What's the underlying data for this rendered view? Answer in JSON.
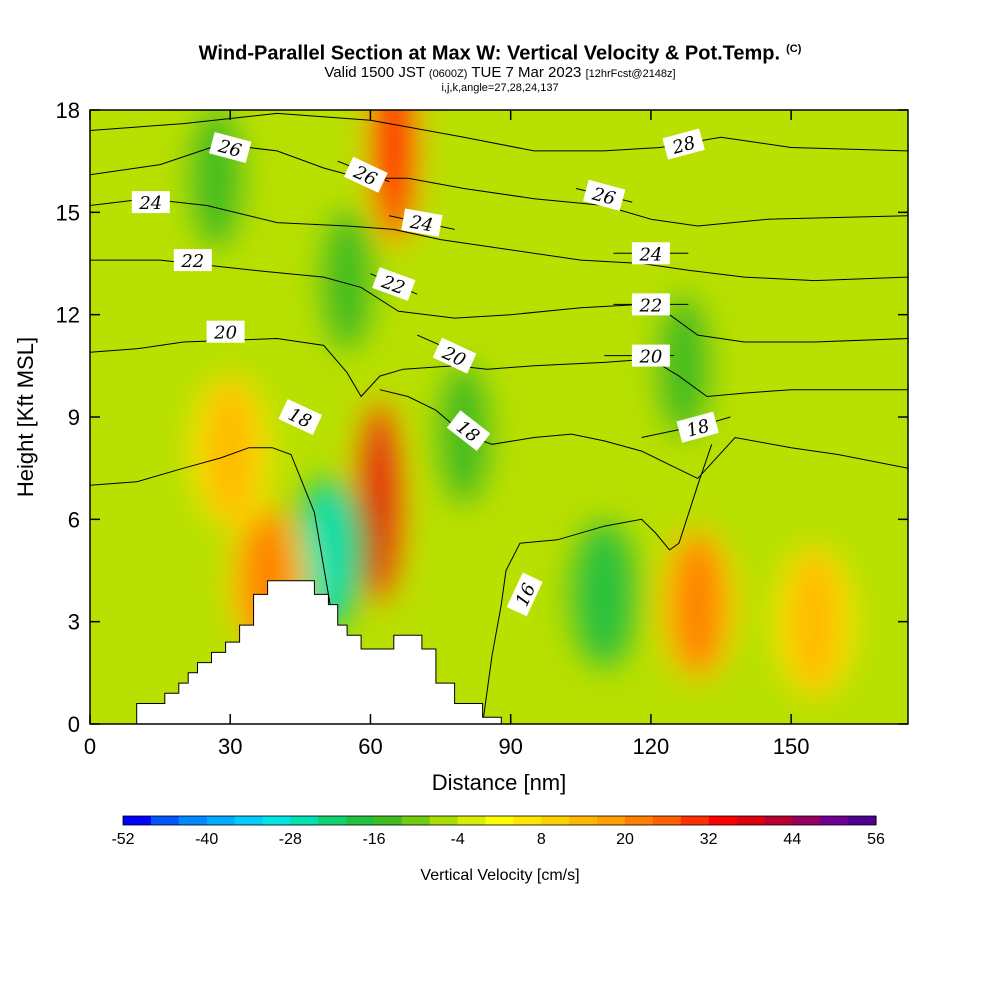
{
  "title": {
    "main": "Wind-Parallel Section at Max W: Vertical Velocity & Pot.Temp.",
    "copyright": "(C)",
    "valid_prefix": "Valid 1500 JST",
    "valid_utc": "(0600Z)",
    "valid_date": "TUE 7 Mar 2023",
    "forecast": "[12hrFcst@2148z]",
    "indices": "i,j,k,angle=27,28,24,137"
  },
  "chart_data": {
    "type": "heatmap",
    "xlabel": "Distance [nm]",
    "ylabel": "Height [Kft MSL]",
    "xlim": [
      0,
      175
    ],
    "ylim": [
      0,
      18
    ],
    "xticks": [
      0,
      30,
      60,
      90,
      120,
      150
    ],
    "yticks": [
      0,
      3,
      6,
      9,
      12,
      15,
      18
    ],
    "colorbar": {
      "title": "Vertical Velocity [cm/s]",
      "min": -52,
      "max": 56,
      "step": 4,
      "tick_labels": [
        "-52",
        "-40",
        "-28",
        "-16",
        "-4",
        "8",
        "20",
        "32",
        "44",
        "56"
      ],
      "colors": [
        "#0000ff",
        "#0055ff",
        "#0088ff",
        "#00aaff",
        "#00ccff",
        "#00e5e5",
        "#00e0b0",
        "#10d070",
        "#20c040",
        "#40bb20",
        "#70cc10",
        "#a8dd00",
        "#d8ee00",
        "#ffff00",
        "#ffe600",
        "#ffd000",
        "#ffb800",
        "#ff9f00",
        "#ff8000",
        "#ff6000",
        "#ff3000",
        "#ff0000",
        "#dd0010",
        "#b80030",
        "#940060",
        "#700090",
        "#500090"
      ]
    },
    "velocity_features": [
      {
        "x": 62,
        "y": 6.5,
        "value": 36,
        "kind": "updraft"
      },
      {
        "x": 65,
        "y": 17.0,
        "value": 34,
        "kind": "updraft"
      },
      {
        "x": 51,
        "y": 5.0,
        "value": -28,
        "kind": "downdraft"
      },
      {
        "x": 38,
        "y": 4.2,
        "value": 22,
        "kind": "updraft"
      },
      {
        "x": 130,
        "y": 3.5,
        "value": 22,
        "kind": "updraft"
      },
      {
        "x": 110,
        "y": 3.8,
        "value": -20,
        "kind": "downdraft"
      },
      {
        "x": 80,
        "y": 8.5,
        "value": -16,
        "kind": "downdraft"
      },
      {
        "x": 30,
        "y": 8.0,
        "value": 14,
        "kind": "updraft"
      },
      {
        "x": 27,
        "y": 16.0,
        "value": -14,
        "kind": "downdraft"
      },
      {
        "x": 55,
        "y": 13.0,
        "value": -16,
        "kind": "downdraft"
      },
      {
        "x": 127,
        "y": 10.5,
        "value": -14,
        "kind": "downdraft"
      },
      {
        "x": 155,
        "y": 3.0,
        "value": 14,
        "kind": "updraft"
      }
    ],
    "theta_contours": [
      {
        "label": "16",
        "label_x": 93,
        "label_y": 3.8,
        "angle": -65,
        "points": [
          [
            84,
            0
          ],
          [
            86,
            2
          ],
          [
            88,
            3.5
          ],
          [
            89,
            4.5
          ],
          [
            92,
            5.3
          ],
          [
            100,
            5.4
          ],
          [
            110,
            5.8
          ],
          [
            118,
            6.0
          ],
          [
            121,
            5.6
          ],
          [
            124,
            5.1
          ],
          [
            126,
            5.3
          ],
          [
            130,
            7.0
          ],
          [
            133,
            8.2
          ]
        ]
      },
      {
        "label": "18",
        "label_x": 45,
        "label_y": 9.0,
        "angle": 25,
        "points": [
          [
            0,
            7.0
          ],
          [
            10,
            7.1
          ],
          [
            20,
            7.5
          ],
          [
            28,
            7.8
          ],
          [
            34,
            8.1
          ],
          [
            39,
            8.1
          ],
          [
            43,
            7.9
          ],
          [
            48,
            6.2
          ],
          [
            52,
            3.0
          ],
          [
            55,
            2.4
          ]
        ]
      },
      {
        "label": "18",
        "label_x": 81,
        "label_y": 8.6,
        "angle": 38,
        "points": [
          [
            62,
            9.8
          ],
          [
            68,
            9.6
          ],
          [
            74,
            9.2
          ],
          [
            80,
            8.5
          ],
          [
            86,
            8.2
          ],
          [
            95,
            8.4
          ],
          [
            103,
            8.5
          ],
          [
            110,
            8.3
          ],
          [
            118,
            8.0
          ],
          [
            124,
            7.6
          ],
          [
            130,
            7.2
          ],
          [
            138,
            8.4
          ],
          [
            150,
            8.1
          ],
          [
            160,
            7.9
          ],
          [
            175,
            7.5
          ]
        ]
      },
      {
        "label": "18",
        "label_x": 130,
        "label_y": 8.7,
        "angle": -15,
        "points": [
          [
            118,
            8.4
          ],
          [
            125,
            8.6
          ],
          [
            132,
            8.8
          ],
          [
            137,
            9.0
          ]
        ]
      },
      {
        "label": "20",
        "label_x": 29,
        "label_y": 11.5,
        "angle": 0,
        "points": [
          [
            0,
            10.9
          ],
          [
            10,
            11.0
          ],
          [
            20,
            11.2
          ],
          [
            40,
            11.3
          ],
          [
            50,
            11.1
          ],
          [
            55,
            10.3
          ],
          [
            58,
            9.6
          ],
          [
            62,
            10.2
          ],
          [
            67,
            10.4
          ],
          [
            78,
            10.5
          ],
          [
            85,
            10.4
          ],
          [
            95,
            10.5
          ],
          [
            110,
            10.6
          ],
          [
            120,
            10.7
          ],
          [
            126,
            10.2
          ],
          [
            132,
            9.6
          ],
          [
            140,
            9.7
          ],
          [
            150,
            9.8
          ],
          [
            175,
            9.8
          ]
        ]
      },
      {
        "label": "20",
        "label_x": 78,
        "label_y": 10.8,
        "angle": 25,
        "points": [
          [
            70,
            11.4
          ],
          [
            80,
            10.8
          ]
        ]
      },
      {
        "label": "20",
        "label_x": 120,
        "label_y": 10.8,
        "angle": 0,
        "points": [
          [
            110,
            10.8
          ],
          [
            125,
            10.8
          ]
        ]
      },
      {
        "label": "22",
        "label_x": 22,
        "label_y": 13.6,
        "angle": 0,
        "points": [
          [
            0,
            13.6
          ],
          [
            15,
            13.6
          ],
          [
            35,
            13.3
          ],
          [
            50,
            13.1
          ],
          [
            58,
            12.8
          ],
          [
            66,
            12.1
          ],
          [
            78,
            11.9
          ],
          [
            90,
            12.0
          ],
          [
            105,
            12.2
          ],
          [
            118,
            12.3
          ],
          [
            124,
            12.0
          ],
          [
            130,
            11.4
          ],
          [
            140,
            11.2
          ],
          [
            155,
            11.2
          ],
          [
            175,
            11.3
          ]
        ]
      },
      {
        "label": "22",
        "label_x": 65,
        "label_y": 12.9,
        "angle": 20,
        "points": [
          [
            60,
            13.2
          ],
          [
            70,
            12.6
          ]
        ]
      },
      {
        "label": "22",
        "label_x": 120,
        "label_y": 12.3,
        "angle": 0,
        "points": [
          [
            112,
            12.3
          ],
          [
            128,
            12.3
          ]
        ]
      },
      {
        "label": "24",
        "label_x": 13,
        "label_y": 15.3,
        "angle": 0,
        "points": [
          [
            0,
            15.2
          ],
          [
            12,
            15.4
          ],
          [
            25,
            15.2
          ],
          [
            40,
            14.7
          ],
          [
            55,
            14.6
          ],
          [
            65,
            14.5
          ],
          [
            75,
            14.2
          ],
          [
            90,
            13.9
          ],
          [
            105,
            13.6
          ],
          [
            118,
            13.5
          ],
          [
            128,
            13.3
          ],
          [
            140,
            13.1
          ],
          [
            155,
            13.0
          ],
          [
            175,
            13.1
          ]
        ]
      },
      {
        "label": "24",
        "label_x": 71,
        "label_y": 14.7,
        "angle": 10,
        "points": [
          [
            64,
            14.9
          ],
          [
            78,
            14.5
          ]
        ]
      },
      {
        "label": "24",
        "label_x": 120,
        "label_y": 13.8,
        "angle": 0,
        "points": [
          [
            112,
            13.8
          ],
          [
            128,
            13.8
          ]
        ]
      },
      {
        "label": "26",
        "label_x": 30,
        "label_y": 16.9,
        "angle": 15,
        "points": [
          [
            0,
            16.1
          ],
          [
            15,
            16.4
          ],
          [
            28,
            17.0
          ],
          [
            40,
            16.8
          ],
          [
            50,
            16.3
          ],
          [
            58,
            16.0
          ],
          [
            68,
            16.0
          ],
          [
            80,
            15.7
          ],
          [
            95,
            15.4
          ],
          [
            110,
            15.2
          ],
          [
            120,
            14.8
          ],
          [
            130,
            14.6
          ],
          [
            145,
            14.8
          ],
          [
            175,
            14.9
          ]
        ]
      },
      {
        "label": "26",
        "label_x": 59,
        "label_y": 16.1,
        "angle": 25,
        "points": [
          [
            53,
            16.5
          ],
          [
            64,
            15.9
          ]
        ]
      },
      {
        "label": "26",
        "label_x": 110,
        "label_y": 15.5,
        "angle": 15,
        "points": [
          [
            104,
            15.7
          ],
          [
            116,
            15.3
          ]
        ]
      },
      {
        "label": "28",
        "label_x": 127,
        "label_y": 17.0,
        "angle": -15,
        "points": [
          [
            0,
            17.4
          ],
          [
            20,
            17.6
          ],
          [
            40,
            17.9
          ],
          [
            60,
            17.7
          ],
          [
            80,
            17.2
          ],
          [
            95,
            16.8
          ],
          [
            110,
            16.8
          ],
          [
            122,
            16.9
          ],
          [
            135,
            17.2
          ],
          [
            150,
            16.9
          ],
          [
            175,
            16.8
          ]
        ]
      }
    ],
    "terrain_steps": [
      [
        0,
        0
      ],
      [
        10,
        0
      ],
      [
        10,
        0.6
      ],
      [
        16,
        0.6
      ],
      [
        16,
        0.9
      ],
      [
        19,
        0.9
      ],
      [
        19,
        1.2
      ],
      [
        21,
        1.2
      ],
      [
        21,
        1.5
      ],
      [
        23,
        1.5
      ],
      [
        23,
        1.8
      ],
      [
        26,
        1.8
      ],
      [
        26,
        2.1
      ],
      [
        29,
        2.1
      ],
      [
        29,
        2.4
      ],
      [
        32,
        2.4
      ],
      [
        32,
        2.9
      ],
      [
        35,
        2.9
      ],
      [
        35,
        3.8
      ],
      [
        38,
        3.8
      ],
      [
        38,
        4.2
      ],
      [
        48,
        4.2
      ],
      [
        48,
        3.8
      ],
      [
        51,
        3.8
      ],
      [
        51,
        3.5
      ],
      [
        53,
        3.5
      ],
      [
        53,
        2.9
      ],
      [
        55,
        2.9
      ],
      [
        55,
        2.6
      ],
      [
        58,
        2.6
      ],
      [
        58,
        2.2
      ],
      [
        65,
        2.2
      ],
      [
        65,
        2.6
      ],
      [
        71,
        2.6
      ],
      [
        71,
        2.2
      ],
      [
        74,
        2.2
      ],
      [
        74,
        1.2
      ],
      [
        78,
        1.2
      ],
      [
        78,
        0.6
      ],
      [
        84,
        0.6
      ],
      [
        84,
        0.2
      ],
      [
        88,
        0.2
      ],
      [
        88,
        0
      ]
    ]
  }
}
